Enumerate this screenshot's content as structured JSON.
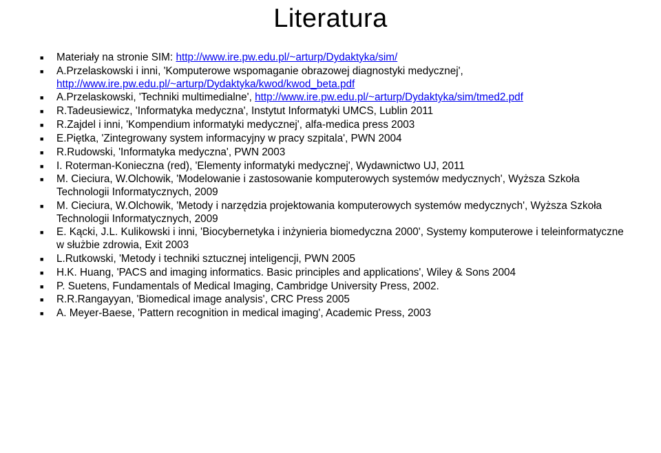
{
  "title": "Literatura",
  "colors": {
    "link": "#0000ee",
    "text": "#000000",
    "background": "#ffffff"
  },
  "typography": {
    "title_fontsize": 38,
    "body_fontsize": 15.3,
    "font_family": "Arial"
  },
  "items": [
    {
      "prefix": "Materiały na stronie SIM:   ",
      "link": "http://www.ire.pw.edu.pl/~arturp/Dydaktyka/sim/"
    },
    {
      "prefix": "A.Przelaskowski i inni, 'Komputerowe wspomaganie obrazowej diagnostyki medycznej', ",
      "link": "http://www.ire.pw.edu.pl/~arturp/Dydaktyka/kwod/kwod_beta.pdf"
    },
    {
      "prefix": "A.Przelaskowski, 'Techniki multimedialne', ",
      "link": "http://www.ire.pw.edu.pl/~arturp/Dydaktyka/sim/tmed2.pdf"
    },
    {
      "prefix": "R.Tadeusiewicz, 'Informatyka medyczna', Instytut Informatyki UMCS, Lublin 2011"
    },
    {
      "prefix": "R.Zajdel i inni, 'Kompendium informatyki medycznej', alfa-medica press 2003"
    },
    {
      "prefix": "E.Piętka, 'Zintegrowany system informacyjny w pracy szpitala', PWN 2004"
    },
    {
      "prefix": "R.Rudowski, 'Informatyka medyczna', PWN 2003"
    },
    {
      "prefix": "I. Roterman-Konieczna (red), 'Elementy informatyki medycznej', Wydawnictwo UJ, 2011"
    },
    {
      "prefix": "M. Cieciura, W.Olchowik, 'Modelowanie i zastosowanie komputerowych systemów medycznych', Wyższa Szkoła Technologii Informatycznych, 2009"
    },
    {
      "prefix": "M. Cieciura, W.Olchowik, 'Metody i narzędzia projektowania komputerowych systemów medycznych', Wyższa Szkoła Technologii Informatycznych, 2009"
    },
    {
      "prefix": "E. Kącki, J.L. Kulikowski i inni, 'Biocybernetyka i inżynieria biomedyczna 2000', Systemy komputerowe i teleinformatyczne w służbie zdrowia, Exit 2003"
    },
    {
      "prefix": "L.Rutkowski, 'Metody i techniki sztucznej inteligencji, PWN 2005"
    },
    {
      "prefix": "H.K. Huang, 'PACS and imaging informatics. Basic principles and applications', Wiley & Sons 2004"
    },
    {
      "prefix": "P. Suetens, Fundamentals of Medical Imaging, Cambridge University Press, 2002."
    },
    {
      "prefix": "R.R.Rangayyan, 'Biomedical image analysis',  CRC Press 2005"
    },
    {
      "prefix": "A. Meyer-Baese, 'Pattern recognition in medical imaging', Academic Press, 2003"
    }
  ]
}
